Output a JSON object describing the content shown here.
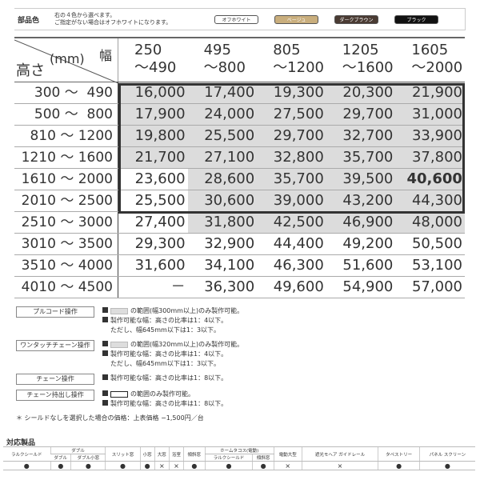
{
  "parts_color": {
    "label": "部品色",
    "note1": "右の４色から選べます。",
    "note2": "ご指定がない場合はオフホワイトになります。",
    "options": [
      {
        "label": "オフホワイト",
        "color": "#ffffff",
        "text": "#333"
      },
      {
        "label": "ベージュ",
        "color": "#c9ae7d",
        "text": "#fff"
      },
      {
        "label": "ダークブラウン",
        "color": "#4a3b33",
        "text": "#fff"
      },
      {
        "label": "ブラック",
        "color": "#111111",
        "text": "#fff"
      }
    ]
  },
  "price_table": {
    "height_label": "高さ",
    "unit_label": "(mm)",
    "width_label": "幅",
    "columns": [
      {
        "from": "250",
        "to": "～490"
      },
      {
        "from": "495",
        "to": "～800"
      },
      {
        "from": "805",
        "to": "～1200"
      },
      {
        "from": "1205",
        "to": "～1600"
      },
      {
        "from": "1605",
        "to": "～2000"
      }
    ],
    "rows": [
      {
        "height": "300 ～  490",
        "prices": [
          "16,000",
          "17,400",
          "19,300",
          "20,300",
          "21,900"
        ]
      },
      {
        "height": "500 ～  800",
        "prices": [
          "17,900",
          "24,000",
          "27,500",
          "29,700",
          "31,000"
        ]
      },
      {
        "height": "810 ～ 1200",
        "prices": [
          "19,800",
          "25,500",
          "29,700",
          "32,700",
          "33,900"
        ]
      },
      {
        "height": "1210 ～ 1600",
        "prices": [
          "21,700",
          "27,100",
          "32,800",
          "35,700",
          "37,800"
        ]
      },
      {
        "height": "1610 ～ 2000",
        "prices": [
          "23,600",
          "28,600",
          "35,700",
          "39,500",
          "40,600"
        ]
      },
      {
        "height": "2010 ～ 2500",
        "prices": [
          "25,500",
          "30,600",
          "39,000",
          "43,200",
          "44,300"
        ]
      },
      {
        "height": "2510 ～ 3000",
        "prices": [
          "27,400",
          "31,800",
          "42,500",
          "46,900",
          "48,000"
        ]
      },
      {
        "height": "3010 ～ 3500",
        "prices": [
          "29,300",
          "32,900",
          "44,400",
          "49,200",
          "50,500"
        ]
      },
      {
        "height": "3510 ～ 4000",
        "prices": [
          "31,600",
          "34,100",
          "46,300",
          "51,600",
          "53,100"
        ]
      },
      {
        "height": "4010 ～ 4500",
        "prices": [
          "－",
          "36,300",
          "49,600",
          "54,900",
          "57,000"
        ]
      }
    ]
  },
  "legend": [
    {
      "tag": "プルコード操作",
      "lines": [
        "の範囲(幅300mm以上)のみ製作可能。",
        "製作可能な幅：高さの比率は1：4以下。",
        "ただし、幅645mm以下は1：3以下。"
      ],
      "swatch": "gray"
    },
    {
      "tag": "ワンタッチチェーン操作",
      "lines": [
        "の範囲(幅320mm以上)のみ製作可能。",
        "製作可能な幅：高さの比率は1：4以下。",
        "ただし、幅645mm以下は1：3以下。"
      ],
      "swatch": "gray"
    },
    {
      "tag": "チェーン操作",
      "lines": [
        "製作可能な幅：高さの比率は1：8以下。"
      ],
      "swatch": "none"
    },
    {
      "tag": "チェーン持出し操作",
      "lines": [
        "の範囲のみ製作可能。",
        "製作可能な幅：高さの比率は1：8以下。"
      ],
      "swatch": "outline"
    }
  ],
  "footnote": "＊ シールドなしを選択した場合の価格：上表価格 −1,500円／台",
  "products": {
    "title": "対応製品",
    "group_double": "ダブル",
    "group_hometacos": "ホームタコス(電動)",
    "columns": [
      "ラルクシールド",
      "ダブル",
      "ダブル小窓",
      "スリット窓",
      "小窓",
      "大窓",
      "浴室",
      "傾斜窓",
      "ラルクシールド",
      "傾斜窓",
      "電動大型",
      "遮光モヘア ガイドレール",
      "タペストリー",
      "パネル スクリーン"
    ],
    "values": [
      "●",
      "●",
      "●",
      "●",
      "●",
      "×",
      "×",
      "●",
      "●",
      "●",
      "×",
      "×",
      "●",
      "●"
    ]
  }
}
